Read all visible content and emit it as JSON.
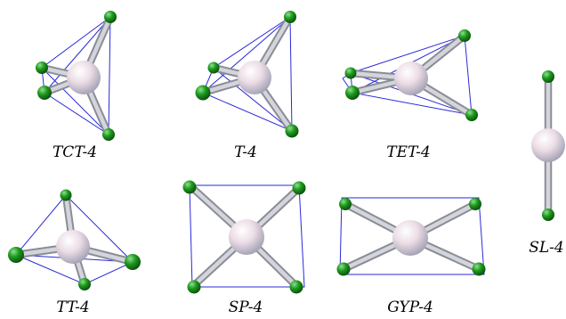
{
  "figure": {
    "structures": [
      {
        "id": "tct4",
        "label": "TCT-4"
      },
      {
        "id": "t4",
        "label": "T-4"
      },
      {
        "id": "tet4",
        "label": "TET-4"
      },
      {
        "id": "sl4",
        "label": "SL-4"
      },
      {
        "id": "tt4",
        "label": "TT-4"
      },
      {
        "id": "sp4",
        "label": "SP-4"
      },
      {
        "id": "gyp4",
        "label": "GYP-4"
      }
    ]
  },
  "colors": {
    "edge": "#2a2ad8",
    "ligand": "#1e9a1e",
    "center": "#ecdde6"
  }
}
